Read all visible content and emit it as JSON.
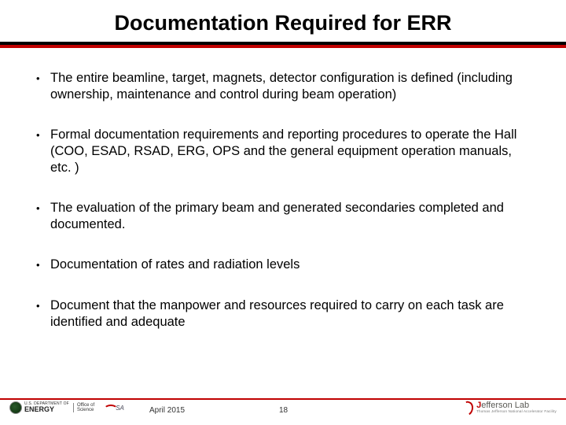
{
  "title": "Documentation Required for ERR",
  "bullets": [
    "The entire beamline, target, magnets, detector configuration is defined (including ownership, maintenance and control during beam operation)",
    "Formal documentation requirements and reporting procedures to operate the Hall (COO, ESAD, RSAD, ERG, OPS and the general equipment operation manuals, etc. )",
    "The evaluation of the primary beam and generated secondaries  completed and documented.",
    "Documentation of rates and radiation levels",
    "Document that the manpower and resources required to carry on each task are identified and adequate"
  ],
  "footer": {
    "date": "April 2015",
    "page": "18",
    "energy_dept_top": "U.S. DEPARTMENT OF",
    "energy_dept_main": "ENERGY",
    "office_top": "Office of",
    "office_bot": "Science",
    "jsa": "SA",
    "jlab_main_j": "J",
    "jlab_main_rest": "efferson Lab",
    "jlab_sub": "Thomas Jefferson National Accelerator Facility"
  },
  "colors": {
    "accent_red": "#c00000",
    "rule_black": "#000000",
    "text": "#000000",
    "background": "#ffffff"
  }
}
